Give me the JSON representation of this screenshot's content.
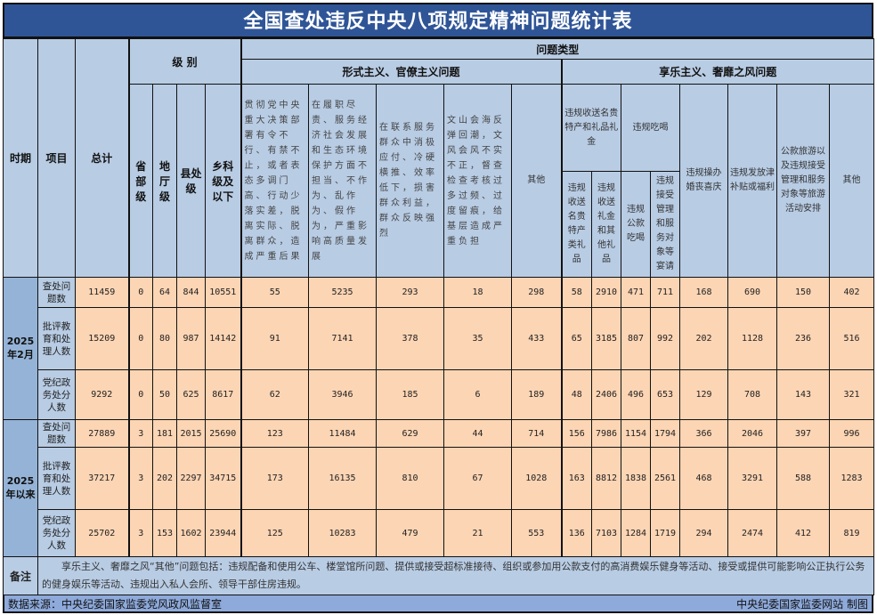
{
  "title": "全国查处违反中央八项规定精神问题统计表",
  "headers": {
    "period": "时期",
    "item": "项目",
    "total": "总计",
    "level": "级 别",
    "levels": [
      "省部级",
      "地厅级",
      "县处级",
      "乡科级及以下"
    ],
    "problem_type": "问题类型",
    "formalism": "形式主义、官僚主义问题",
    "formalism_cols": [
      "贯彻党中央重大决策部署有令不行、有禁不止，或者表态多调门高、行动少落实差，脱离实际、脱离群众，造成严重后果",
      "在履职尽责、服务经济社会发展和生态环境保护方面不担当、不作为、乱作为、假作为，严重影响高质量发展",
      "在联系服务群众中消极应付、冷硬横推、效率低下，损害群众利益，群众反映强烈",
      "文山会海反弹回潮，文风会风不实不正，督查检查考核过多过频、过度留痕，给基层造成严重负担",
      "其他"
    ],
    "hedonism": "享乐主义、奢靡之风问题",
    "gifts": "违规收送名贵特产和礼品礼金",
    "gifts_sub": [
      "违规收送名贵特产类礼品",
      "违规收送礼金和其他礼品"
    ],
    "dining": "违规吃喝",
    "dining_sub": [
      "违规公款吃喝",
      "违规接受管理和服务对象等宴请"
    ],
    "hedonism_cols": [
      "违规操办婚丧喜庆",
      "违规发放津补贴或福利",
      "公款旅游以及违规接受管理和服务对象等旅游活动安排",
      "其他"
    ]
  },
  "groups": [
    {
      "period": "2025年2月",
      "rows": [
        {
          "item": "查处问题数",
          "values": [
            "11459",
            "0",
            "64",
            "844",
            "10551",
            "55",
            "5235",
            "293",
            "18",
            "298",
            "58",
            "2910",
            "471",
            "711",
            "168",
            "690",
            "150",
            "402"
          ]
        },
        {
          "item": "批评教育和处理人数",
          "values": [
            "15209",
            "0",
            "80",
            "987",
            "14142",
            "91",
            "7141",
            "378",
            "35",
            "433",
            "65",
            "3185",
            "807",
            "992",
            "202",
            "1128",
            "236",
            "516"
          ]
        },
        {
          "item": "党纪政务处分人数",
          "values": [
            "9292",
            "0",
            "50",
            "625",
            "8617",
            "62",
            "3946",
            "185",
            "6",
            "189",
            "48",
            "2406",
            "496",
            "653",
            "129",
            "708",
            "143",
            "321"
          ]
        }
      ]
    },
    {
      "period": "2025年以来",
      "rows": [
        {
          "item": "查处问题数",
          "values": [
            "27889",
            "3",
            "181",
            "2015",
            "25690",
            "123",
            "11484",
            "629",
            "44",
            "714",
            "156",
            "7986",
            "1154",
            "1794",
            "366",
            "2046",
            "397",
            "996"
          ]
        },
        {
          "item": "批评教育和处理人数",
          "values": [
            "37217",
            "3",
            "202",
            "2297",
            "34715",
            "173",
            "16135",
            "810",
            "67",
            "1028",
            "163",
            "8812",
            "1838",
            "2561",
            "468",
            "3291",
            "588",
            "1283"
          ]
        },
        {
          "item": "党纪政务处分人数",
          "values": [
            "25702",
            "3",
            "153",
            "1602",
            "23944",
            "125",
            "10283",
            "479",
            "21",
            "553",
            "136",
            "7103",
            "1284",
            "1719",
            "294",
            "2474",
            "412",
            "819"
          ]
        }
      ]
    }
  ],
  "notes": {
    "label": "备注",
    "text": "享乐主义、奢靡之风“其他”问题包括：违规配备和使用公车、楼堂馆所问题、提供或接受超标准接待、组织或参加用公款支付的高消费娱乐健身等活动、接受或提供可能影响公正执行公务的健身娱乐等活动、违规出入私人会所、领导干部住房违规。"
  },
  "footer": {
    "source": "数据来源：中央纪委国家监委党风政风监督室",
    "credit": "中央纪委国家监委网站 制图"
  },
  "colors": {
    "title_bg": "#2f5597",
    "header_bg": "#b8cce4",
    "period_bg": "#95b3d7",
    "data_bg": "#fcd5b4"
  }
}
